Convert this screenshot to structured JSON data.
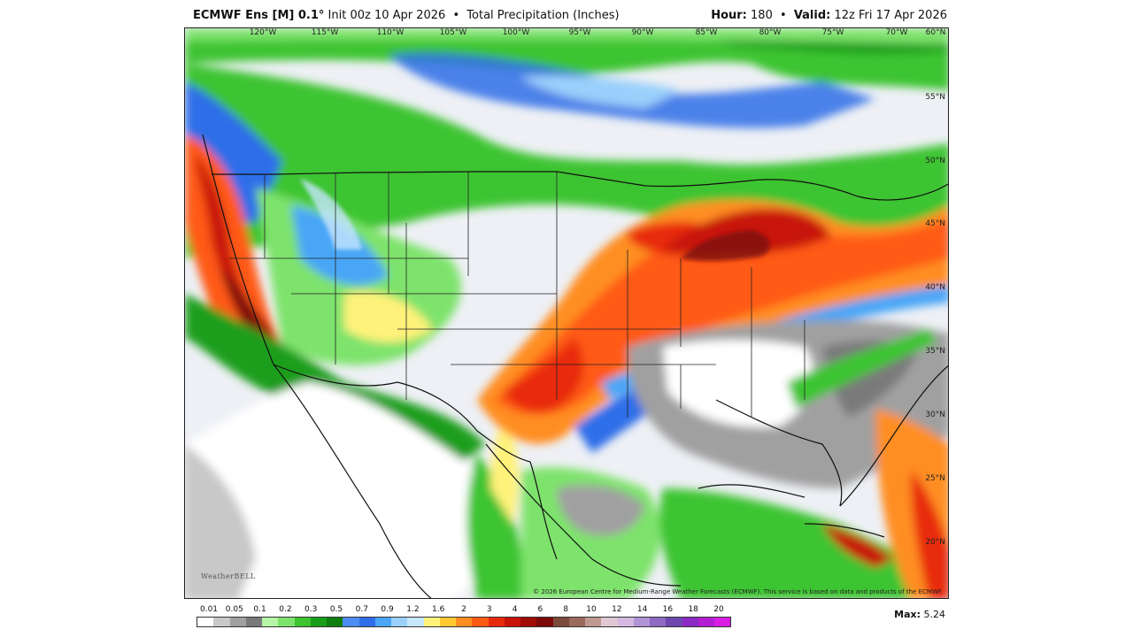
{
  "header": {
    "model": "ECMWF Ens [M] 0.1°",
    "init": "Init 00z 10 Apr 2026",
    "bullet": "•",
    "product": "Total Precipitation (Inches)",
    "hour_label": "Hour:",
    "hour_value": "180",
    "valid_label": "Valid:",
    "valid_value": "12z Fri 17 Apr 2026"
  },
  "map": {
    "lon_labels": [
      "120°W",
      "115°W",
      "110°W",
      "105°W",
      "100°W",
      "95°W",
      "90°W",
      "85°W",
      "80°W",
      "75°W",
      "70°W",
      "60°N"
    ],
    "lat_labels": [
      "55°N",
      "50°N",
      "45°N",
      "40°N",
      "35°N",
      "30°N",
      "25°N",
      "20°N"
    ],
    "copyright": "© 2026 European Centre for Medium-Range Weather Forecasts (ECMWF). This service is based on data and products of the ECMWF.",
    "logo": "WeatherBELL"
  },
  "legend": {
    "ticks": [
      "0.01",
      "0.05",
      "0.1",
      "0.2",
      "0.3",
      "0.5",
      "0.7",
      "0.9",
      "1.2",
      "1.6",
      "2",
      "3",
      "4",
      "6",
      "8",
      "10",
      "12",
      "14",
      "16",
      "18",
      "20"
    ],
    "colors": [
      "#ffffff",
      "#c8c8c8",
      "#a0a0a0",
      "#7a7a7a",
      "#b6f5a6",
      "#7ee36c",
      "#3dc430",
      "#1a9e1a",
      "#0e7f0e",
      "#4d8cf2",
      "#2f6ee8",
      "#4aa6f7",
      "#9ad0fb",
      "#c6e6fc",
      "#fff27a",
      "#ffc934",
      "#ff8e20",
      "#ff5a14",
      "#e82a0c",
      "#c8130a",
      "#a00c08",
      "#7c0a0a",
      "#7a4a3a",
      "#9a6a5a",
      "#bf9a92",
      "#e0c8d2",
      "#d6b8e2",
      "#b094d6",
      "#8e6ac2",
      "#6e46ae",
      "#8a2ac2",
      "#b41ed2",
      "#d81ee2"
    ],
    "max_label": "Max:",
    "max_value": "5.24"
  }
}
